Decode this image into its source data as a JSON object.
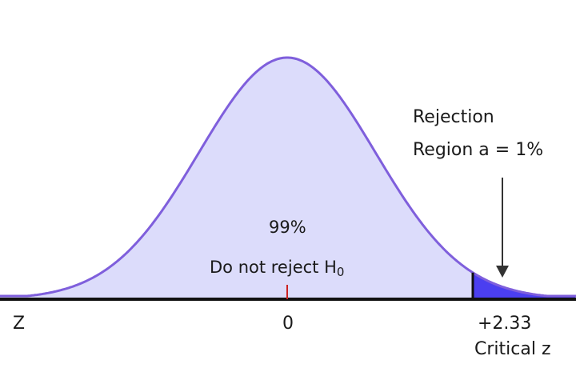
{
  "diagram": {
    "area_percent_label": "99%",
    "do_not_reject_text": "Do not reject H",
    "do_not_reject_subscript": "0",
    "rejection_line1": "Rejection",
    "rejection_line2": "Region a = 1%",
    "axis_variable_label": "Z",
    "mean_label": "0",
    "critical_value_label": "+2.33",
    "critical_caption": "Critical z",
    "critical_z": 2.33,
    "alpha": 0.01,
    "colors": {
      "body_fill": "#dcdcfb",
      "curve_stroke": "#7f5fdc",
      "rejection_fill": "#4b3ff0",
      "axis": "#111111",
      "mean_tick": "#cc2222",
      "arrow": "#333333"
    }
  }
}
